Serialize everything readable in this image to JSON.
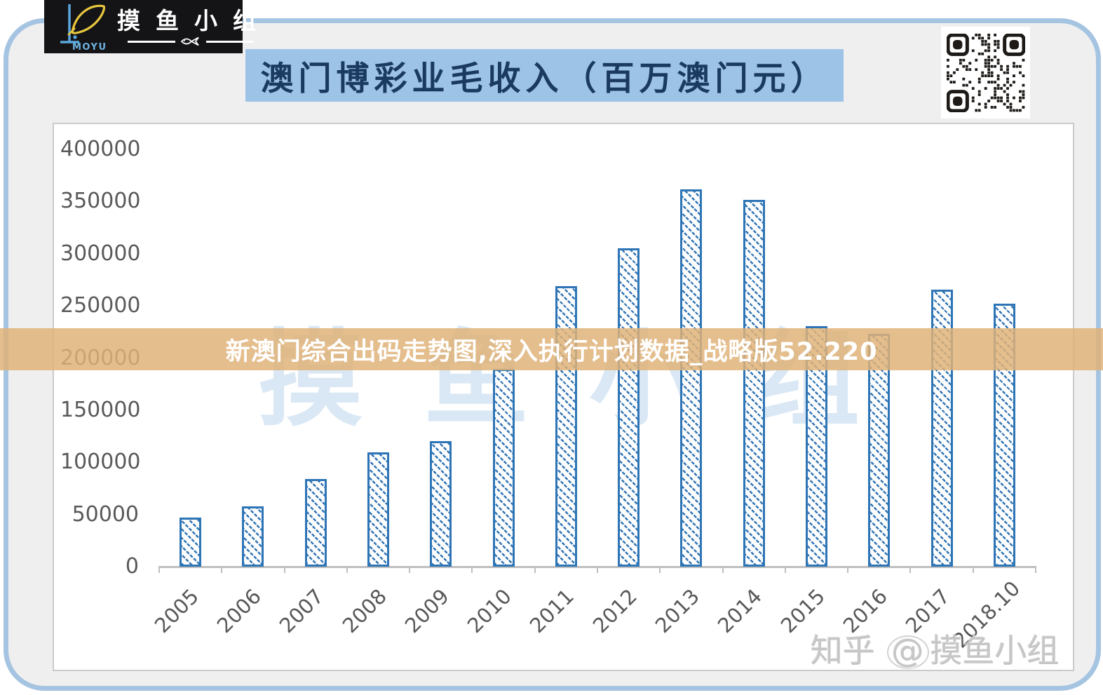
{
  "header": {
    "logo": {
      "brand": "MOYU",
      "group_name": "摸鱼小组"
    },
    "title": "澳门博彩业毛收入（百万澳门元）"
  },
  "overlay": {
    "banner_text": "新澳门综合出码走势图,深入执行计划数据_战略版52.220"
  },
  "watermarks": {
    "chart_background": "摸鱼小组",
    "bottom": {
      "site": "知乎",
      "at": "@",
      "name": "摸鱼小组"
    }
  },
  "colors": {
    "frame_border": "#a5c4e1",
    "frame_background": "#efeff0",
    "title_background": "#9dc3e6",
    "title_text": "#1b3a60",
    "banner_background": "#e0b177",
    "bar_color": "#2e75b6",
    "axis_text": "#595959"
  },
  "chart_data": {
    "type": "bar",
    "title": "澳门博彩业毛收入（百万澳门元）",
    "xlabel": "",
    "ylabel": "",
    "categories": [
      "2005",
      "2006",
      "2007",
      "2008",
      "2009",
      "2010",
      "2011",
      "2012",
      "2013",
      "2014",
      "2015",
      "2016",
      "2017",
      "2018.10"
    ],
    "values": [
      47134,
      57521,
      83847,
      109826,
      120383,
      189588,
      269058,
      305235,
      361866,
      351521,
      230840,
      223210,
      265743,
      251900
    ],
    "ylim": [
      0,
      400000
    ],
    "ytick_step": 50000,
    "grid": false,
    "legend": false,
    "bar_style": "diagonal-hatch"
  }
}
